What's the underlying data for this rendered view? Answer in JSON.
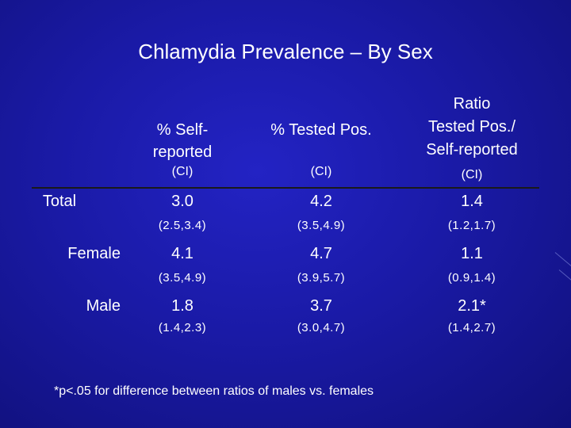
{
  "title": "Chlamydia Prevalence – By Sex",
  "columns": [
    {
      "header": "% Self-reported",
      "ci_label": "(CI)"
    },
    {
      "header": "% Tested Pos.",
      "ci_label": "(CI)"
    },
    {
      "header_line1": "Ratio",
      "header_line2": "Tested Pos./",
      "header_line3": "Self-reported",
      "ci_label": "(CI)"
    }
  ],
  "col1_header_line1": "% Self-",
  "col1_header_line2": "reported",
  "rows": [
    {
      "label": "Total",
      "values": [
        "3.0",
        "4.2",
        "1.4"
      ],
      "cis": [
        "(2.5,3.4)",
        "(3.5,4.9)",
        "(1.2,1.7)"
      ]
    },
    {
      "label": "Female",
      "values": [
        "4.1",
        "4.7",
        "1.1"
      ],
      "cis": [
        "(3.5,4.9)",
        "(3.9,5.7)",
        "(0.9,1.4)"
      ]
    },
    {
      "label": "Male",
      "values": [
        "1.8",
        "3.7",
        "2.1*"
      ],
      "cis": [
        "(1.4,2.3)",
        "(3.0,4.7)",
        "(1.4,2.7)"
      ]
    }
  ],
  "footnote": "*p<.05 for difference between ratios of males vs. females"
}
